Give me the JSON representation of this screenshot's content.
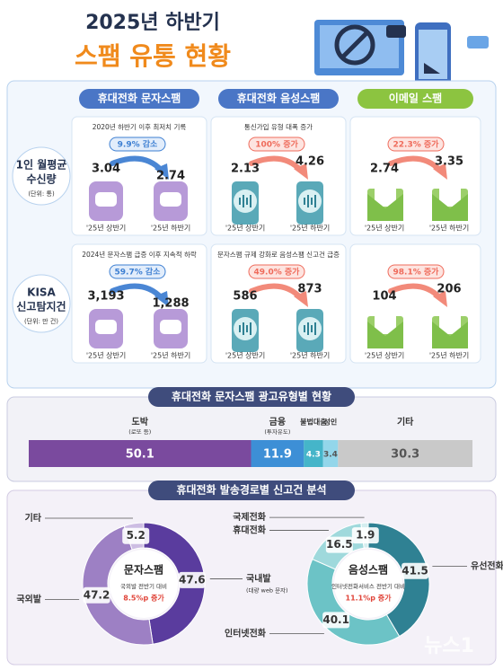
{
  "title": "2025년 하반기",
  "subtitle": "스팸 유통 현황",
  "comparison": {
    "columns": [
      "휴대전화 문자스팸",
      "휴대전화 음성스팸",
      "이메일 스팸"
    ],
    "periods": [
      "'25년 상반기",
      "'25년 하반기"
    ],
    "rows": [
      {
        "label": [
          "1인 월평균",
          "수신량"
        ],
        "unit": "(단위: 통)",
        "cells": [
          {
            "note": "2020년 하반기 이후 최저치 기록",
            "change": "9.9% 감소",
            "values": [
              3.04,
              2.74
            ]
          },
          {
            "note": "통신가입 유형 대폭 증가",
            "change": "100% 증가",
            "values": [
              2.13,
              4.26
            ]
          },
          {
            "change": "22.3% 증가",
            "values": [
              2.74,
              3.35
            ]
          }
        ]
      },
      {
        "label": [
          "KISA",
          "신고탐지건"
        ],
        "unit": "(단위: 만 건)",
        "cells": [
          {
            "note": "2024년 문자스팸 급증 이후 지속적 하락",
            "change": "59.7% 감소",
            "values": [
              3193,
              1288
            ],
            "value_labels": [
              "3,193",
              "1,288"
            ]
          },
          {
            "note": "문자스팸 규제 강화로 음성스팸 신고건 급증",
            "change": "49.0% 증가",
            "values": [
              586,
              873
            ]
          },
          {
            "change": "98.1% 증가",
            "values": [
              104,
              206
            ]
          }
        ]
      }
    ]
  },
  "chart_data": [
    {
      "type": "stacked_bar",
      "title": "휴대전화 문자스팸 광고유형별 현황",
      "xlim": [
        0,
        100
      ],
      "series": [
        {
          "name": "도박",
          "note": "(로또 등)",
          "color": "#7a4a9e",
          "values": [
            50.1
          ]
        },
        {
          "name": "금융",
          "note": "(투자유도)",
          "color": "#3d8fd6",
          "values": [
            11.9
          ]
        },
        {
          "name": "불법대출",
          "color": "#45b5c9",
          "values": [
            4.3
          ]
        },
        {
          "name": "성인",
          "color": "#93d6ea",
          "values": [
            3.4
          ]
        },
        {
          "name": "기타",
          "color": "#c9c9c9",
          "values": [
            30.3
          ]
        }
      ]
    },
    {
      "type": "donut",
      "title": "휴대전화 발송경로별 신고건 분석",
      "center": "문자스팸",
      "center_note": "국외발 전반기 대비",
      "center_change": "8.5%p 증가",
      "categories": [
        "국내발",
        "국외발",
        "기타"
      ],
      "category_notes": [
        "(대량 web 문자)",
        null,
        null
      ],
      "values": [
        47.6,
        47.2,
        5.2
      ],
      "colors": [
        "#5a3c9e",
        "#9d80c4",
        "#cdbde3"
      ]
    },
    {
      "type": "donut",
      "center": "음성스팸",
      "center_note": "인터넷전화서비스 전반기 대비",
      "center_change": "11.1%p 증가",
      "categories": [
        "유선전화",
        "인터넷전화",
        "휴대전화",
        "국제전화"
      ],
      "values": [
        41.5,
        40.1,
        16.5,
        1.9
      ],
      "colors": [
        "#2f8193",
        "#6cc3c6",
        "#9fd9dc",
        "#d4eef0"
      ]
    }
  ],
  "watermark": "뉴스1"
}
